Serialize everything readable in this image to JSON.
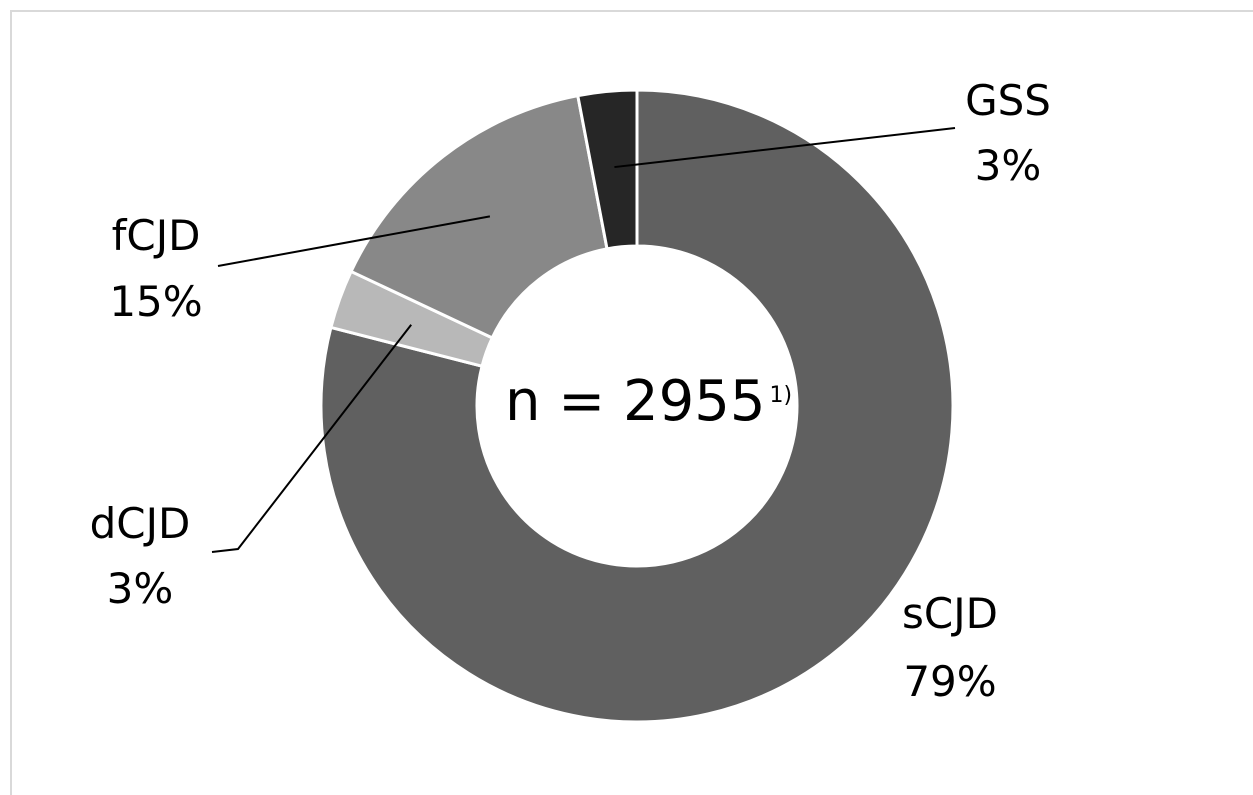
{
  "chart_data": {
    "type": "pie",
    "style": "donut",
    "total_label": "n = 2955",
    "total_footnote": "1)",
    "slices": [
      {
        "name": "sCJD",
        "value": 79,
        "pct_label": "79%",
        "color": "#606060"
      },
      {
        "name": "dCJD",
        "value": 3,
        "pct_label": "3%",
        "color": "#b8b8b8"
      },
      {
        "name": "fCJD",
        "value": 15,
        "pct_label": "15%",
        "color": "#888888"
      },
      {
        "name": "GSS",
        "value": 3,
        "pct_label": "3%",
        "color": "#262626"
      }
    ],
    "legend": "none",
    "grid": false
  }
}
